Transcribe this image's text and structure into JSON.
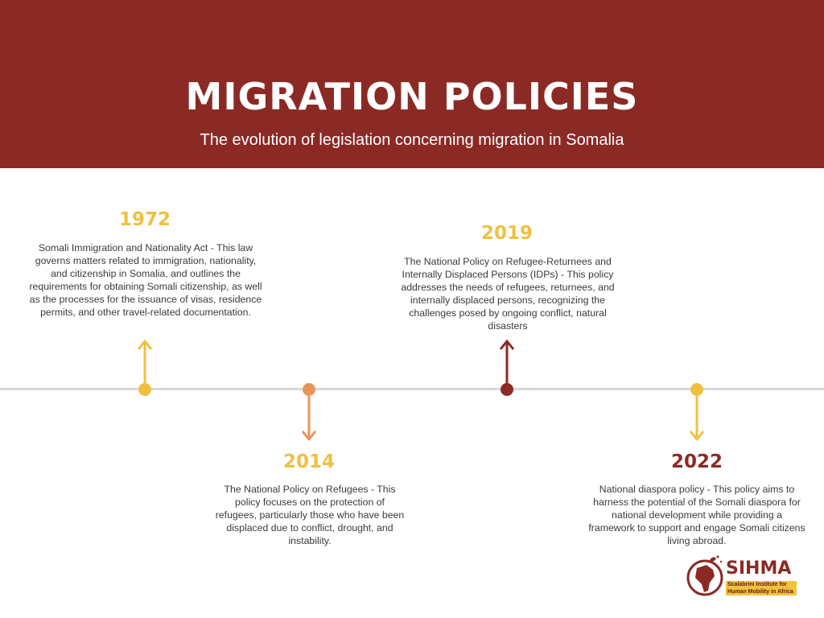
{
  "header": {
    "title": "MIGRATION POLICIES",
    "subtitle": "The evolution of legislation concerning migration in Somalia",
    "background": "#8b2a25"
  },
  "timeline": {
    "line_color": "#d9d9d9",
    "events": [
      {
        "year": "1972",
        "color": "#f0c040",
        "direction": "up",
        "text": "Somali Immigration and Nationality Act - This law governs matters related to immigration, nationality, and citizenship in Somalia, and outlines the requirements for obtaining Somali citizenship, as well as the processes for the issuance of visas, residence permits, and other travel-related documentation."
      },
      {
        "year": "2014",
        "color": "#e8955a",
        "direction": "down",
        "text": "The National Policy on Refugees - This policy focuses on the protection of refugees, particularly those who have been displaced due to conflict, drought, and instability."
      },
      {
        "year": "2019",
        "color": "#8b2a25",
        "year_color": "#f0c040",
        "direction": "up",
        "text": "The National Policy on Refugee-Returnees and Internally Displaced Persons (IDPs) - This policy addresses the needs of refugees, returnees, and internally displaced persons, recognizing the challenges posed by ongoing conflict, natural disasters"
      },
      {
        "year": "2022",
        "color": "#f0c040",
        "year_color": "#8b2a25",
        "direction": "down",
        "text": "National diaspora policy - This policy aims to harness the potential of the Somali diaspora for national development while providing a framework to support and engage Somali citizens living abroad."
      }
    ]
  },
  "logo": {
    "name": "SIHMA",
    "tagline": "Scalabrini Institute for Human Mobility in Africa",
    "icon": "africa-globe-icon"
  }
}
